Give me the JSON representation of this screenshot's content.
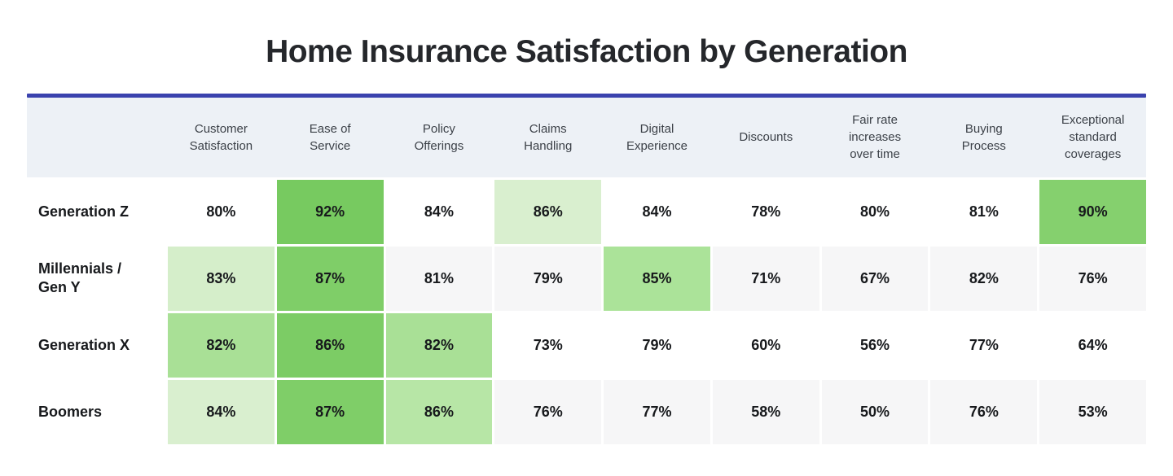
{
  "title": "Home Insurance Satisfaction by Generation",
  "theme": {
    "accent_line_color": "#3a42ae",
    "header_bg": "#edf1f6",
    "stripe_bg": "#f6f6f7",
    "default_cell_bg": "#ffffff",
    "title_color": "#25272b",
    "header_text_color": "#3c4148",
    "value_text_color": "#17191c"
  },
  "chart_data": {
    "type": "heatmap",
    "title": "Home Insurance Satisfaction by Generation",
    "unit": "%",
    "legend_position": "none",
    "columns": [
      "Customer Satisfaction",
      "Ease of Service",
      "Policy Offerings",
      "Claims Handling",
      "Digital Experience",
      "Discounts",
      "Fair rate increases over time",
      "Buying Process",
      "Exceptional standard coverages"
    ],
    "rows": [
      {
        "label": "Generation Z",
        "values": [
          80,
          92,
          84,
          86,
          84,
          78,
          80,
          81,
          90
        ],
        "cell_colors": [
          null,
          "#77ca60",
          null,
          "#d9efcf",
          null,
          null,
          null,
          null,
          "#85d06e"
        ],
        "striped": false
      },
      {
        "label": "Millennials / Gen Y",
        "values": [
          83,
          87,
          81,
          79,
          85,
          71,
          67,
          82,
          76
        ],
        "cell_colors": [
          "#d5eeca",
          "#7fce68",
          null,
          null,
          "#abe399",
          null,
          null,
          null,
          null
        ],
        "striped": true
      },
      {
        "label": "Generation X",
        "values": [
          82,
          86,
          82,
          73,
          79,
          60,
          56,
          77,
          64
        ],
        "cell_colors": [
          "#a9e096",
          "#7ccc65",
          "#a9e096",
          null,
          null,
          null,
          null,
          null,
          null
        ],
        "striped": false
      },
      {
        "label": "Boomers",
        "values": [
          84,
          87,
          86,
          76,
          77,
          58,
          50,
          76,
          53
        ],
        "cell_colors": [
          "#d9efcf",
          "#7fce68",
          "#b7e6a6",
          null,
          null,
          null,
          null,
          null,
          null
        ],
        "striped": true
      }
    ]
  }
}
